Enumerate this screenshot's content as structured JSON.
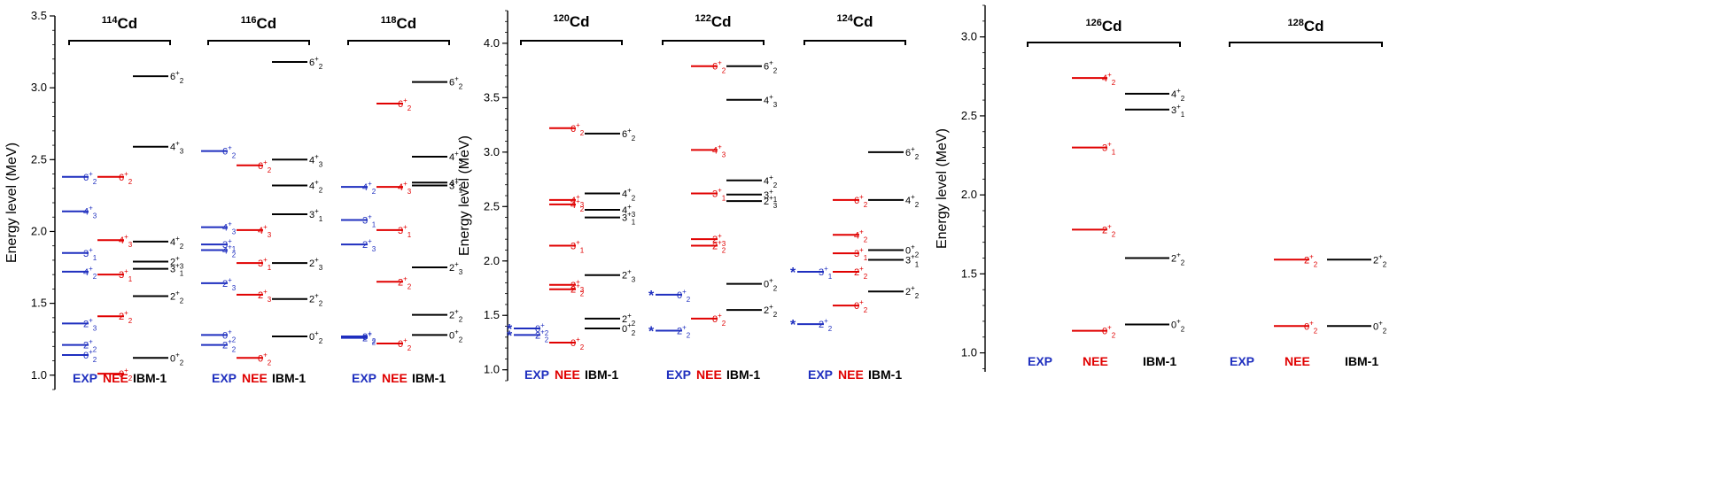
{
  "colors": {
    "EXP": "#1f2fbf",
    "NEE": "#e00000",
    "IBM-1": "#000000"
  },
  "chart_data": [
    {
      "type": "level-scheme",
      "ylabel": "Energy level (MeV)",
      "ylim": [
        0.9,
        3.5
      ],
      "yticks": [
        1.0,
        1.5,
        2.0,
        2.5,
        3.0,
        3.5
      ],
      "columns": [
        "EXP",
        "NEE",
        "IBM-1"
      ],
      "nuclei": [
        {
          "mass": "114",
          "element": "Cd",
          "levels": {
            "EXP": [
              {
                "E": 2.38,
                "J": "6",
                "n": "2"
              },
              {
                "E": 2.14,
                "J": "4",
                "n": "3"
              },
              {
                "E": 1.85,
                "J": "3",
                "n": "1"
              },
              {
                "E": 1.72,
                "J": "4",
                "n": "2"
              },
              {
                "E": 1.36,
                "J": "2",
                "n": "3"
              },
              {
                "E": 1.21,
                "J": "2",
                "n": "2"
              },
              {
                "E": 1.14,
                "J": "0",
                "n": "2"
              }
            ],
            "NEE": [
              {
                "E": 2.38,
                "J": "6",
                "n": "2"
              },
              {
                "E": 1.94,
                "J": "4",
                "n": "3"
              },
              {
                "E": 1.7,
                "J": "3",
                "n": "1"
              },
              {
                "E": 1.41,
                "J": "2",
                "n": "2"
              },
              {
                "E": 1.01,
                "J": "0",
                "n": "2"
              }
            ],
            "IBM-1": [
              {
                "E": 3.08,
                "J": "6",
                "n": "2"
              },
              {
                "E": 2.59,
                "J": "4",
                "n": "3"
              },
              {
                "E": 1.93,
                "J": "4",
                "n": "2"
              },
              {
                "E": 1.79,
                "J": "2",
                "n": "3"
              },
              {
                "E": 1.74,
                "J": "3",
                "n": "1"
              },
              {
                "E": 1.55,
                "J": "2",
                "n": "2"
              },
              {
                "E": 1.12,
                "J": "0",
                "n": "2"
              }
            ]
          }
        },
        {
          "mass": "116",
          "element": "Cd",
          "levels": {
            "EXP": [
              {
                "E": 2.56,
                "J": "6",
                "n": "2"
              },
              {
                "E": 2.03,
                "J": "4",
                "n": "3"
              },
              {
                "E": 1.91,
                "J": "3",
                "n": "1"
              },
              {
                "E": 1.87,
                "J": "4",
                "n": "2"
              },
              {
                "E": 1.64,
                "J": "2",
                "n": "3"
              },
              {
                "E": 1.28,
                "J": "0",
                "n": "2"
              },
              {
                "E": 1.21,
                "J": "2",
                "n": "2"
              }
            ],
            "NEE": [
              {
                "E": 2.46,
                "J": "6",
                "n": "2"
              },
              {
                "E": 2.01,
                "J": "4",
                "n": "3"
              },
              {
                "E": 1.78,
                "J": "3",
                "n": "1"
              },
              {
                "E": 1.56,
                "J": "2",
                "n": "3"
              },
              {
                "E": 1.12,
                "J": "0",
                "n": "2"
              }
            ],
            "IBM-1": [
              {
                "E": 3.18,
                "J": "6",
                "n": "2"
              },
              {
                "E": 2.5,
                "J": "4",
                "n": "3"
              },
              {
                "E": 2.32,
                "J": "4",
                "n": "2"
              },
              {
                "E": 2.12,
                "J": "3",
                "n": "1"
              },
              {
                "E": 1.78,
                "J": "2",
                "n": "3"
              },
              {
                "E": 1.53,
                "J": "2",
                "n": "2"
              },
              {
                "E": 1.27,
                "J": "0",
                "n": "2"
              }
            ]
          }
        },
        {
          "mass": "118",
          "element": "Cd",
          "levels": {
            "EXP": [
              {
                "E": 2.31,
                "J": "4",
                "n": "2"
              },
              {
                "E": 2.08,
                "J": "3",
                "n": "1"
              },
              {
                "E": 1.91,
                "J": "2",
                "n": "3"
              },
              {
                "E": 1.27,
                "J": "0",
                "n": "2"
              },
              {
                "E": 1.26,
                "J": "2",
                "n": "2"
              }
            ],
            "NEE": [
              {
                "E": 2.89,
                "J": "6",
                "n": "2"
              },
              {
                "E": 2.31,
                "J": "4",
                "n": "3"
              },
              {
                "E": 2.01,
                "J": "3",
                "n": "1"
              },
              {
                "E": 1.65,
                "J": "2",
                "n": "2"
              },
              {
                "E": 1.22,
                "J": "0",
                "n": "2"
              }
            ],
            "IBM-1": [
              {
                "E": 3.04,
                "J": "6",
                "n": "2"
              },
              {
                "E": 2.52,
                "J": "4",
                "n": "3"
              },
              {
                "E": 2.34,
                "J": "4",
                "n": "2"
              },
              {
                "E": 2.32,
                "J": "3",
                "n": "1"
              },
              {
                "E": 1.75,
                "J": "2",
                "n": "3"
              },
              {
                "E": 1.42,
                "J": "2",
                "n": "2"
              },
              {
                "E": 1.28,
                "J": "0",
                "n": "2"
              }
            ]
          }
        }
      ]
    },
    {
      "type": "level-scheme",
      "ylabel": "Energy level (MeV)",
      "ylim": [
        0.9,
        4.3
      ],
      "yticks": [
        1.0,
        1.5,
        2.0,
        2.5,
        3.0,
        3.5,
        4.0
      ],
      "columns": [
        "EXP",
        "NEE",
        "IBM-1"
      ],
      "nuclei": [
        {
          "mass": "120",
          "element": "Cd",
          "levels": {
            "EXP": [
              {
                "E": 1.38,
                "J": "0",
                "n": "2",
                "star": true
              },
              {
                "E": 1.32,
                "J": "2",
                "n": "2",
                "star": true
              }
            ],
            "NEE": [
              {
                "E": 3.22,
                "J": "6",
                "n": "2"
              },
              {
                "E": 2.56,
                "J": "4",
                "n": "3"
              },
              {
                "E": 2.52,
                "J": "4",
                "n": "2"
              },
              {
                "E": 2.14,
                "J": "3",
                "n": "1"
              },
              {
                "E": 1.78,
                "J": "2",
                "n": "3"
              },
              {
                "E": 1.74,
                "J": "2",
                "n": "2"
              },
              {
                "E": 1.25,
                "J": "0",
                "n": "2"
              }
            ],
            "IBM-1": [
              {
                "E": 3.17,
                "J": "6",
                "n": "2"
              },
              {
                "E": 2.62,
                "J": "4",
                "n": "2"
              },
              {
                "E": 2.47,
                "J": "4",
                "n": "3"
              },
              {
                "E": 2.4,
                "J": "3",
                "n": "1"
              },
              {
                "E": 1.87,
                "J": "2",
                "n": "3"
              },
              {
                "E": 1.47,
                "J": "2",
                "n": "2"
              },
              {
                "E": 1.38,
                "J": "0",
                "n": "2"
              }
            ]
          }
        },
        {
          "mass": "122",
          "element": "Cd",
          "levels": {
            "EXP": [
              {
                "E": 1.69,
                "J": "0",
                "n": "2",
                "star": true
              },
              {
                "E": 1.36,
                "J": "2",
                "n": "2",
                "star": true
              }
            ],
            "NEE": [
              {
                "E": 3.79,
                "J": "6",
                "n": "2"
              },
              {
                "E": 3.02,
                "J": "4",
                "n": "3"
              },
              {
                "E": 2.62,
                "J": "3",
                "n": "1"
              },
              {
                "E": 2.2,
                "J": "2",
                "n": "3"
              },
              {
                "E": 2.14,
                "J": "2",
                "n": "2"
              },
              {
                "E": 1.47,
                "J": "0",
                "n": "2"
              }
            ],
            "IBM-1": [
              {
                "E": 3.79,
                "J": "6",
                "n": "2"
              },
              {
                "E": 3.48,
                "J": "4",
                "n": "3"
              },
              {
                "E": 2.74,
                "J": "4",
                "n": "2"
              },
              {
                "E": 2.61,
                "J": "3",
                "n": "1"
              },
              {
                "E": 2.55,
                "J": "2",
                "n": "3"
              },
              {
                "E": 1.79,
                "J": "0",
                "n": "2"
              },
              {
                "E": 1.55,
                "J": "2",
                "n": "2"
              }
            ]
          }
        },
        {
          "mass": "124",
          "element": "Cd",
          "levels": {
            "EXP": [
              {
                "E": 1.9,
                "J": "3",
                "n": "1",
                "star": true
              },
              {
                "E": 1.42,
                "J": "2",
                "n": "2",
                "star": true
              }
            ],
            "NEE": [
              {
                "E": 2.56,
                "J": "6",
                "n": "2"
              },
              {
                "E": 2.24,
                "J": "4",
                "n": "2"
              },
              {
                "E": 2.07,
                "J": "3",
                "n": "1"
              },
              {
                "E": 1.9,
                "J": "2",
                "n": "2"
              },
              {
                "E": 1.59,
                "J": "0",
                "n": "2"
              }
            ],
            "IBM-1": [
              {
                "E": 3.0,
                "J": "6",
                "n": "2"
              },
              {
                "E": 2.56,
                "J": "4",
                "n": "2"
              },
              {
                "E": 2.1,
                "J": "0",
                "n": "2"
              },
              {
                "E": 2.01,
                "J": "3",
                "n": "1"
              },
              {
                "E": 1.72,
                "J": "2",
                "n": "2"
              }
            ]
          }
        }
      ]
    },
    {
      "type": "level-scheme",
      "ylabel": "Energy level (MeV)",
      "ylim": [
        0.88,
        3.2
      ],
      "yticks": [
        1.0,
        1.5,
        2.0,
        2.5,
        3.0
      ],
      "columns": [
        "EXP",
        "NEE",
        "IBM-1"
      ],
      "nuclei": [
        {
          "mass": "126",
          "element": "Cd",
          "levels": {
            "EXP": [],
            "NEE": [
              {
                "E": 2.74,
                "J": "4",
                "n": "2"
              },
              {
                "E": 2.3,
                "J": "3",
                "n": "1"
              },
              {
                "E": 1.78,
                "J": "2",
                "n": "2"
              },
              {
                "E": 1.14,
                "J": "0",
                "n": "2"
              }
            ],
            "IBM-1": [
              {
                "E": 2.64,
                "J": "4",
                "n": "2"
              },
              {
                "E": 2.54,
                "J": "3",
                "n": "1"
              },
              {
                "E": 1.6,
                "J": "2",
                "n": "2"
              },
              {
                "E": 1.18,
                "J": "0",
                "n": "2"
              }
            ]
          }
        },
        {
          "mass": "128",
          "element": "Cd",
          "levels": {
            "EXP": [],
            "NEE": [
              {
                "E": 1.59,
                "J": "2",
                "n": "2"
              },
              {
                "E": 1.17,
                "J": "0",
                "n": "2"
              }
            ],
            "IBM-1": [
              {
                "E": 1.59,
                "J": "2",
                "n": "2"
              },
              {
                "E": 1.17,
                "J": "0",
                "n": "2"
              }
            ]
          }
        }
      ]
    }
  ]
}
